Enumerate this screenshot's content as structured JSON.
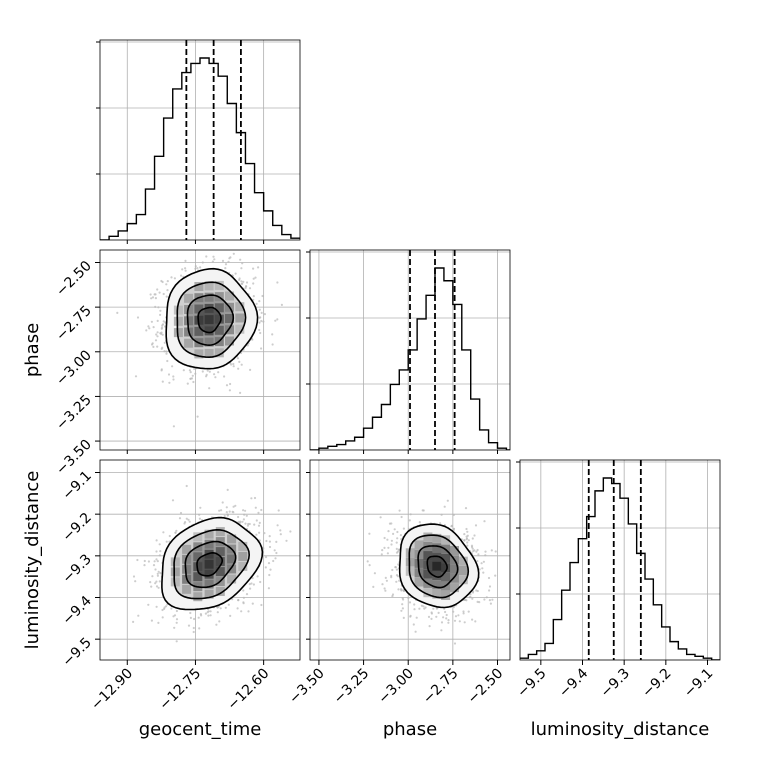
{
  "chart_data": {
    "type": "corner",
    "parameters": [
      "geocent_time",
      "phase",
      "luminosity_distance"
    ],
    "axes": {
      "geocent_time": {
        "label": "geocent_time",
        "range": [
          -12.96,
          -12.52
        ],
        "ticks": [
          -12.9,
          -12.75,
          -12.6
        ],
        "tick_labels": [
          "−12.90",
          "−12.75",
          "−12.60"
        ],
        "quantiles": [
          -12.77,
          -12.71,
          -12.65
        ]
      },
      "phase": {
        "label": "phase",
        "range": [
          -3.55,
          -2.43
        ],
        "ticks": [
          -3.5,
          -3.25,
          -3.0,
          -2.75,
          -2.5
        ],
        "tick_labels": [
          "−3.50",
          "−3.25",
          "−3.00",
          "−2.75",
          "−2.50"
        ],
        "quantiles": [
          -2.99,
          -2.85,
          -2.74
        ]
      },
      "luminosity_distance": {
        "label": "luminosity_distance",
        "range": [
          -9.55,
          -9.07
        ],
        "ticks": [
          -9.5,
          -9.4,
          -9.3,
          -9.2,
          -9.1
        ],
        "tick_labels": [
          "−9.5",
          "−9.4",
          "−9.3",
          "−9.2",
          "−9.1"
        ],
        "quantiles": [
          -9.385,
          -9.325,
          -9.26
        ]
      }
    },
    "histograms": {
      "geocent_time": {
        "bin_edges": [
          -12.96,
          -12.94,
          -12.92,
          -12.9,
          -12.88,
          -12.86,
          -12.84,
          -12.82,
          -12.8,
          -12.78,
          -12.76,
          -12.74,
          -12.72,
          -12.7,
          -12.68,
          -12.66,
          -12.64,
          -12.62,
          -12.6,
          -12.58,
          -12.56,
          -12.54,
          -12.52
        ],
        "counts": [
          0,
          0.02,
          0.05,
          0.09,
          0.14,
          0.28,
          0.46,
          0.67,
          0.83,
          0.92,
          0.97,
          1.0,
          0.97,
          0.9,
          0.75,
          0.59,
          0.42,
          0.26,
          0.16,
          0.08,
          0.03,
          0.01
        ]
      },
      "phase": {
        "bin_edges": [
          -3.55,
          -3.5,
          -3.45,
          -3.4,
          -3.35,
          -3.3,
          -3.25,
          -3.2,
          -3.15,
          -3.1,
          -3.05,
          -3.0,
          -2.95,
          -2.9,
          -2.85,
          -2.8,
          -2.75,
          -2.7,
          -2.65,
          -2.6,
          -2.55,
          -2.5,
          -2.45,
          -2.43
        ],
        "counts": [
          0,
          0.01,
          0.02,
          0.03,
          0.05,
          0.07,
          0.12,
          0.18,
          0.25,
          0.36,
          0.44,
          0.55,
          0.72,
          0.85,
          1.0,
          0.93,
          0.8,
          0.55,
          0.28,
          0.11,
          0.04,
          0.01,
          0
        ]
      },
      "luminosity_distance": {
        "bin_edges": [
          -9.55,
          -9.53,
          -9.51,
          -9.49,
          -9.47,
          -9.45,
          -9.43,
          -9.41,
          -9.39,
          -9.37,
          -9.35,
          -9.33,
          -9.31,
          -9.29,
          -9.27,
          -9.25,
          -9.23,
          -9.21,
          -9.19,
          -9.17,
          -9.15,
          -9.13,
          -9.11,
          -9.09,
          -9.07
        ],
        "counts": [
          0.01,
          0.03,
          0.05,
          0.09,
          0.22,
          0.38,
          0.53,
          0.66,
          0.78,
          0.92,
          0.99,
          0.96,
          0.88,
          0.74,
          0.58,
          0.44,
          0.3,
          0.18,
          0.1,
          0.06,
          0.03,
          0.02,
          0.01,
          0
        ]
      }
    },
    "pairs": [
      {
        "x": "geocent_time",
        "y": "phase",
        "center": [
          -12.72,
          -2.82
        ],
        "sd": [
          0.05,
          0.14
        ],
        "corr": 0.05
      },
      {
        "x": "geocent_time",
        "y": "luminosity_distance",
        "center": [
          -12.72,
          -9.32
        ],
        "sd": [
          0.055,
          0.055
        ],
        "corr": 0.25
      },
      {
        "x": "phase",
        "y": "luminosity_distance",
        "center": [
          -2.84,
          -9.325
        ],
        "sd": [
          0.11,
          0.05
        ],
        "corr": -0.15
      }
    ],
    "contour_levels_sigma": [
      0.5,
      1.0,
      1.5,
      2.0
    ],
    "colors": {
      "line": "#000000",
      "grid": "#b0b0b0",
      "scatter": "#b8b8b8"
    },
    "grid": true
  }
}
